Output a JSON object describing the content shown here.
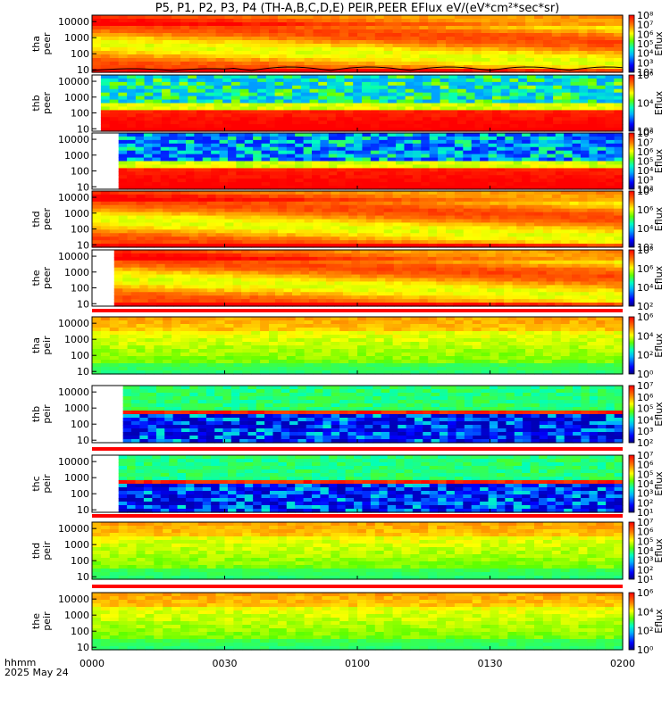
{
  "title": "P5, P1, P2, P3, P4 (TH-A,B,C,D,E) PEIR,PEER EFlux eV/(eV*cm²*sec*sr)",
  "footer": {
    "label": "hhmm",
    "date": "2025 May 24"
  },
  "x_ticks": [
    "0000",
    "0030",
    "0100",
    "0130",
    "0200"
  ],
  "colorbar_label": "Eflux",
  "chart_data": [
    {
      "type": "heatmap",
      "probe": "tha",
      "species": "peer",
      "ylabel": [
        "tha",
        "peer"
      ],
      "yticks": [
        10,
        100,
        1000,
        10000
      ],
      "ylim": [
        7,
        25000
      ],
      "log_y": true,
      "xlim": [
        0,
        120
      ],
      "xticks": [
        "0000",
        "0030",
        "0100",
        "0130",
        "0200"
      ],
      "data_start": 0,
      "colorbar": {
        "label": "Eflux",
        "min_exp": 2,
        "max_exp": 8,
        "ticks": [
          2,
          3,
          4,
          5,
          6,
          7,
          8
        ]
      },
      "style": "warm",
      "overlay_line": true
    },
    {
      "type": "heatmap",
      "probe": "thb",
      "species": "peer",
      "ylabel": [
        "thb",
        "peer"
      ],
      "yticks": [
        10,
        100,
        1000,
        10000
      ],
      "ylim": [
        7,
        25000
      ],
      "log_y": true,
      "xlim": [
        0,
        120
      ],
      "xticks": [
        "0000",
        "0030",
        "0100",
        "0130",
        "0200"
      ],
      "data_start": 2,
      "colorbar": {
        "label": "Eflux",
        "min_exp": 2,
        "max_exp": 6,
        "ticks": [
          2,
          4,
          6
        ]
      },
      "style": "noisy_top"
    },
    {
      "type": "heatmap",
      "probe": "thc",
      "species": "peer",
      "ylabel": [],
      "yticks": [
        10,
        100,
        1000,
        10000
      ],
      "ylim": [
        7,
        25000
      ],
      "log_y": true,
      "xlim": [
        0,
        120
      ],
      "xticks": [
        "0000",
        "0030",
        "0100",
        "0130",
        "0200"
      ],
      "data_start": 6,
      "colorbar": {
        "label": "Eflux",
        "min_exp": 2,
        "max_exp": 8,
        "ticks": [
          2,
          3,
          4,
          5,
          6,
          7,
          8
        ]
      },
      "style": "noisy_top_dark"
    },
    {
      "type": "heatmap",
      "probe": "thd",
      "species": "peer",
      "ylabel": [
        "thd",
        "peer"
      ],
      "yticks": [
        10,
        100,
        1000,
        10000
      ],
      "ylim": [
        7,
        25000
      ],
      "log_y": true,
      "xlim": [
        0,
        120
      ],
      "xticks": [
        "0000",
        "0030",
        "0100",
        "0130",
        "0200"
      ],
      "data_start": 0,
      "colorbar": {
        "label": "Eflux",
        "min_exp": 2,
        "max_exp": 8,
        "ticks": [
          2,
          4,
          6,
          8
        ]
      },
      "style": "warm"
    },
    {
      "type": "heatmap",
      "probe": "the",
      "species": "peer",
      "ylabel": [
        "the",
        "peer"
      ],
      "yticks": [
        10,
        100,
        1000,
        10000
      ],
      "ylim": [
        7,
        25000
      ],
      "log_y": true,
      "xlim": [
        0,
        120
      ],
      "xticks": [
        "0000",
        "0030",
        "0100",
        "0130",
        "0200"
      ],
      "data_start": 5,
      "colorbar": {
        "label": "Eflux",
        "min_exp": 2,
        "max_exp": 8,
        "ticks": [
          2,
          4,
          6,
          8
        ]
      },
      "style": "warm"
    },
    {
      "type": "heatmap",
      "probe": "tha",
      "species": "peir",
      "ylabel": [
        "tha",
        "peir"
      ],
      "yticks": [
        10,
        100,
        1000,
        10000
      ],
      "ylim": [
        7,
        25000
      ],
      "log_y": true,
      "xlim": [
        0,
        120
      ],
      "xticks": [
        "0000",
        "0030",
        "0100",
        "0130",
        "0200"
      ],
      "data_start": 0,
      "colorbar": {
        "label": "Eflux",
        "min_exp": 0,
        "max_exp": 6,
        "ticks": [
          0,
          2,
          4,
          6
        ]
      },
      "style": "ion",
      "top_band": true
    },
    {
      "type": "heatmap",
      "probe": "thb",
      "species": "peir",
      "ylabel": [
        "thb",
        "peir"
      ],
      "yticks": [
        10,
        100,
        1000,
        10000
      ],
      "ylim": [
        7,
        25000
      ],
      "log_y": true,
      "xlim": [
        0,
        120
      ],
      "xticks": [
        "0000",
        "0030",
        "0100",
        "0130",
        "0200"
      ],
      "data_start": 7,
      "colorbar": {
        "label": "Eflux",
        "min_exp": 2,
        "max_exp": 7,
        "ticks": [
          2,
          3,
          4,
          5,
          6,
          7
        ]
      },
      "style": "ion_noisy"
    },
    {
      "type": "heatmap",
      "probe": "thc",
      "species": "peir",
      "ylabel": [
        "thc",
        "peir"
      ],
      "yticks": [
        10,
        100,
        1000,
        10000
      ],
      "ylim": [
        7,
        25000
      ],
      "log_y": true,
      "xlim": [
        0,
        120
      ],
      "xticks": [
        "0000",
        "0030",
        "0100",
        "0130",
        "0200"
      ],
      "data_start": 6,
      "colorbar": {
        "label": "Eflux",
        "min_exp": 1,
        "max_exp": 7,
        "ticks": [
          1,
          2,
          3,
          4,
          5,
          6,
          7
        ]
      },
      "style": "ion_noisy",
      "top_band": true
    },
    {
      "type": "heatmap",
      "probe": "thd",
      "species": "peir",
      "ylabel": [
        "thd",
        "peir"
      ],
      "yticks": [
        10,
        100,
        1000,
        10000
      ],
      "ylim": [
        7,
        25000
      ],
      "log_y": true,
      "xlim": [
        0,
        120
      ],
      "xticks": [
        "0000",
        "0030",
        "0100",
        "0130",
        "0200"
      ],
      "data_start": 0,
      "colorbar": {
        "label": "Eflux",
        "min_exp": 1,
        "max_exp": 7,
        "ticks": [
          1,
          2,
          3,
          4,
          5,
          6,
          7
        ]
      },
      "style": "ion",
      "top_band": true
    },
    {
      "type": "heatmap",
      "probe": "the",
      "species": "peir",
      "ylabel": [
        "the",
        "peir"
      ],
      "yticks": [
        10,
        100,
        1000,
        10000
      ],
      "ylim": [
        7,
        25000
      ],
      "log_y": true,
      "xlim": [
        0,
        120
      ],
      "xticks": [
        "0000",
        "0030",
        "0100",
        "0130",
        "0200"
      ],
      "data_start": 0,
      "colorbar": {
        "label": "Eflux",
        "min_exp": 0,
        "max_exp": 6,
        "ticks": [
          0,
          2,
          4,
          6
        ]
      },
      "style": "ion",
      "top_band": true
    }
  ]
}
